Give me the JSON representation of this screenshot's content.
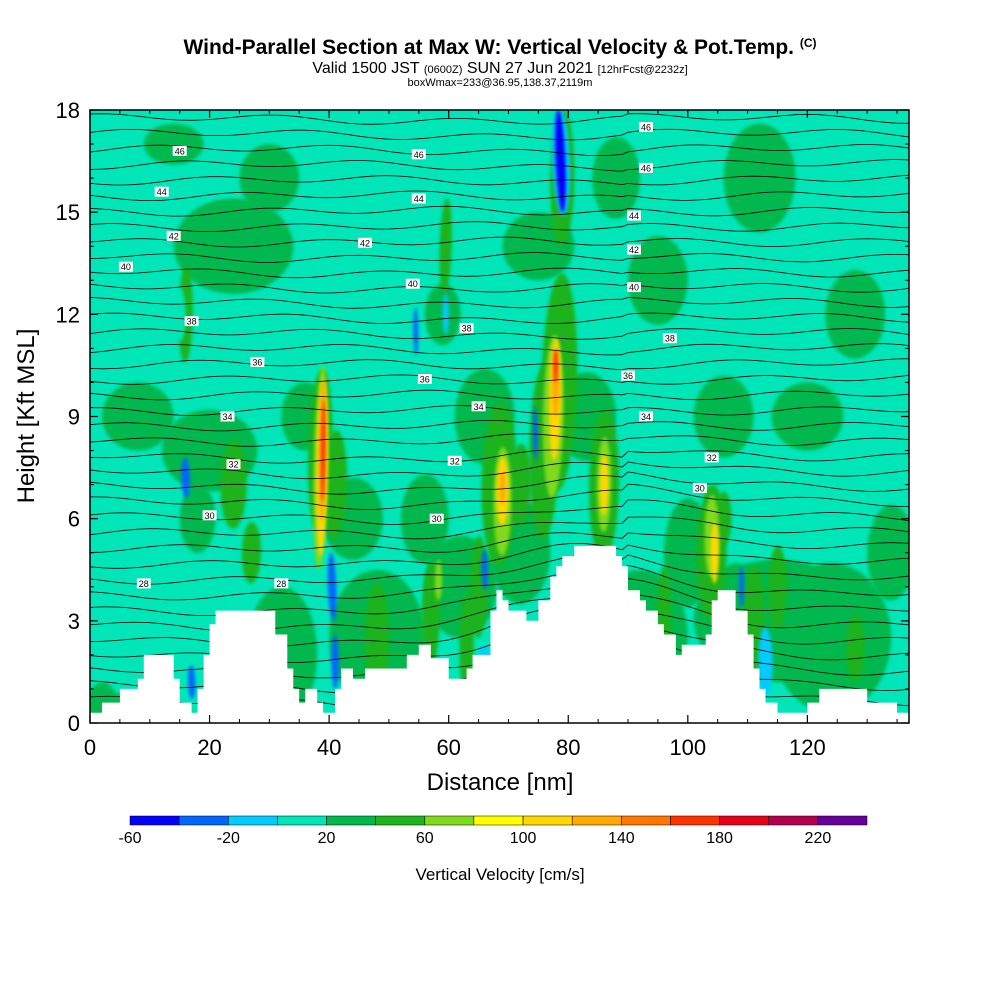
{
  "title": {
    "main": "Wind-Parallel Section at Max W: Vertical Velocity & Pot.Temp.",
    "copyright": "(C)",
    "valid_a": "Valid 1500 JST",
    "valid_utc": "(0600Z)",
    "valid_b": "SUN 27 Jun 2021",
    "forecast": "[12hrFcst@2232z]",
    "box": "boxWmax=233@36.95,138.37,2119m"
  },
  "chart_data": {
    "type": "heatmap",
    "xlabel": "Distance [nm]",
    "ylabel": "Height [Kft MSL]",
    "xlim": [
      0,
      137
    ],
    "ylim": [
      0,
      18
    ],
    "xticks": [
      0,
      20,
      40,
      60,
      80,
      100,
      120
    ],
    "yticks": [
      0,
      3,
      6,
      9,
      12,
      15,
      18
    ],
    "background_value_cm_s": 0,
    "colorbar": {
      "label": "Vertical Velocity [cm/s]",
      "min": -60,
      "max": 240,
      "step": 20,
      "tick_labels": [
        "-60",
        "-20",
        "20",
        "60",
        "100",
        "140",
        "180",
        "220"
      ],
      "colors": [
        "#0000ff",
        "#0066ff",
        "#00ccff",
        "#00e6b8",
        "#00b84d",
        "#1fb31f",
        "#80d91a",
        "#ffff00",
        "#ffd700",
        "#ffaa00",
        "#ff7700",
        "#ff3300",
        "#e6001a",
        "#b3004d",
        "#660099"
      ]
    },
    "terrain_kft": [
      [
        0,
        0.3
      ],
      [
        2,
        0.3
      ],
      [
        2,
        0.6
      ],
      [
        5,
        0.6
      ],
      [
        5,
        1.0
      ],
      [
        8,
        1.0
      ],
      [
        8,
        1.3
      ],
      [
        9,
        1.3
      ],
      [
        9,
        2.0
      ],
      [
        14,
        2.0
      ],
      [
        14,
        1.3
      ],
      [
        15,
        1.3
      ],
      [
        15,
        0.6
      ],
      [
        17,
        0.6
      ],
      [
        17,
        0.3
      ],
      [
        18,
        0.3
      ],
      [
        18,
        1.0
      ],
      [
        19,
        1.0
      ],
      [
        19,
        2.0
      ],
      [
        20,
        2.0
      ],
      [
        20,
        2.9
      ],
      [
        21,
        2.9
      ],
      [
        21,
        3.3
      ],
      [
        31,
        3.3
      ],
      [
        31,
        2.6
      ],
      [
        33,
        2.6
      ],
      [
        33,
        1.6
      ],
      [
        34,
        1.6
      ],
      [
        34,
        1.0
      ],
      [
        35,
        1.0
      ],
      [
        35,
        0.6
      ],
      [
        36,
        0.6
      ],
      [
        36,
        1.0
      ],
      [
        38,
        1.0
      ],
      [
        38,
        0.6
      ],
      [
        39,
        0.6
      ],
      [
        39,
        0.3
      ],
      [
        41,
        0.3
      ],
      [
        41,
        1.0
      ],
      [
        42,
        1.0
      ],
      [
        42,
        1.6
      ],
      [
        44,
        1.6
      ],
      [
        44,
        1.3
      ],
      [
        46,
        1.3
      ],
      [
        46,
        1.6
      ],
      [
        53,
        1.6
      ],
      [
        53,
        2.0
      ],
      [
        55,
        2.0
      ],
      [
        55,
        2.3
      ],
      [
        57,
        2.3
      ],
      [
        57,
        1.9
      ],
      [
        60,
        1.9
      ],
      [
        60,
        1.3
      ],
      [
        63,
        1.3
      ],
      [
        63,
        1.6
      ],
      [
        64,
        1.6
      ],
      [
        64,
        2.0
      ],
      [
        67,
        2.0
      ],
      [
        67,
        3.3
      ],
      [
        68,
        3.3
      ],
      [
        68,
        3.9
      ],
      [
        69,
        3.9
      ],
      [
        69,
        3.6
      ],
      [
        70,
        3.6
      ],
      [
        70,
        3.3
      ],
      [
        73,
        3.3
      ],
      [
        73,
        3.0
      ],
      [
        75,
        3.0
      ],
      [
        75,
        3.6
      ],
      [
        77,
        3.6
      ],
      [
        77,
        4.3
      ],
      [
        78,
        4.3
      ],
      [
        78,
        4.6
      ],
      [
        79,
        4.6
      ],
      [
        79,
        4.9
      ],
      [
        81,
        4.9
      ],
      [
        81,
        5.2
      ],
      [
        88,
        5.2
      ],
      [
        88,
        4.9
      ],
      [
        89,
        4.9
      ],
      [
        89,
        4.6
      ],
      [
        90,
        4.6
      ],
      [
        90,
        3.9
      ],
      [
        92,
        3.9
      ],
      [
        92,
        3.6
      ],
      [
        93,
        3.6
      ],
      [
        93,
        3.3
      ],
      [
        95,
        3.3
      ],
      [
        95,
        2.9
      ],
      [
        96,
        2.9
      ],
      [
        96,
        2.6
      ],
      [
        98,
        2.6
      ],
      [
        98,
        2.0
      ],
      [
        99,
        2.0
      ],
      [
        99,
        2.3
      ],
      [
        103,
        2.3
      ],
      [
        103,
        2.6
      ],
      [
        104,
        2.6
      ],
      [
        104,
        3.6
      ],
      [
        105,
        3.6
      ],
      [
        105,
        3.9
      ],
      [
        108,
        3.9
      ],
      [
        108,
        3.3
      ],
      [
        110,
        3.3
      ],
      [
        110,
        2.6
      ],
      [
        111,
        2.6
      ],
      [
        111,
        1.6
      ],
      [
        112,
        1.6
      ],
      [
        112,
        1.0
      ],
      [
        113,
        1.0
      ],
      [
        113,
        0.6
      ],
      [
        115,
        0.6
      ],
      [
        115,
        0.3
      ],
      [
        120,
        0.3
      ],
      [
        120,
        0.6
      ],
      [
        122,
        0.6
      ],
      [
        122,
        1.0
      ],
      [
        130,
        1.0
      ],
      [
        130,
        0.6
      ],
      [
        135,
        0.6
      ],
      [
        135,
        0.3
      ],
      [
        137,
        0.3
      ]
    ],
    "isentrope_labels": [
      {
        "value": "46",
        "x": 15,
        "y": 16.8
      },
      {
        "value": "46",
        "x": 55,
        "y": 16.7
      },
      {
        "value": "46",
        "x": 93,
        "y": 16.3
      },
      {
        "value": "46",
        "x": 93,
        "y": 17.5
      },
      {
        "value": "44",
        "x": 12,
        "y": 15.6
      },
      {
        "value": "44",
        "x": 55,
        "y": 15.4
      },
      {
        "value": "44",
        "x": 91,
        "y": 14.9
      },
      {
        "value": "42",
        "x": 14,
        "y": 14.3
      },
      {
        "value": "42",
        "x": 46,
        "y": 14.1
      },
      {
        "value": "42",
        "x": 91,
        "y": 13.9
      },
      {
        "value": "40",
        "x": 6,
        "y": 13.4
      },
      {
        "value": "40",
        "x": 54,
        "y": 12.9
      },
      {
        "value": "40",
        "x": 91,
        "y": 12.8
      },
      {
        "value": "38",
        "x": 17,
        "y": 11.8
      },
      {
        "value": "38",
        "x": 63,
        "y": 11.6
      },
      {
        "value": "38",
        "x": 97,
        "y": 11.3
      },
      {
        "value": "36",
        "x": 28,
        "y": 10.6
      },
      {
        "value": "36",
        "x": 56,
        "y": 10.1
      },
      {
        "value": "36",
        "x": 90,
        "y": 10.2
      },
      {
        "value": "34",
        "x": 23,
        "y": 9.0
      },
      {
        "value": "34",
        "x": 65,
        "y": 9.3
      },
      {
        "value": "34",
        "x": 93,
        "y": 9.0
      },
      {
        "value": "32",
        "x": 24,
        "y": 7.6
      },
      {
        "value": "32",
        "x": 61,
        "y": 7.7
      },
      {
        "value": "32",
        "x": 104,
        "y": 7.8
      },
      {
        "value": "30",
        "x": 20,
        "y": 6.1
      },
      {
        "value": "30",
        "x": 58,
        "y": 6.0
      },
      {
        "value": "30",
        "x": 102,
        "y": 6.9
      },
      {
        "value": "28",
        "x": 9,
        "y": 4.1
      },
      {
        "value": "28",
        "x": 32,
        "y": 4.1
      }
    ]
  }
}
